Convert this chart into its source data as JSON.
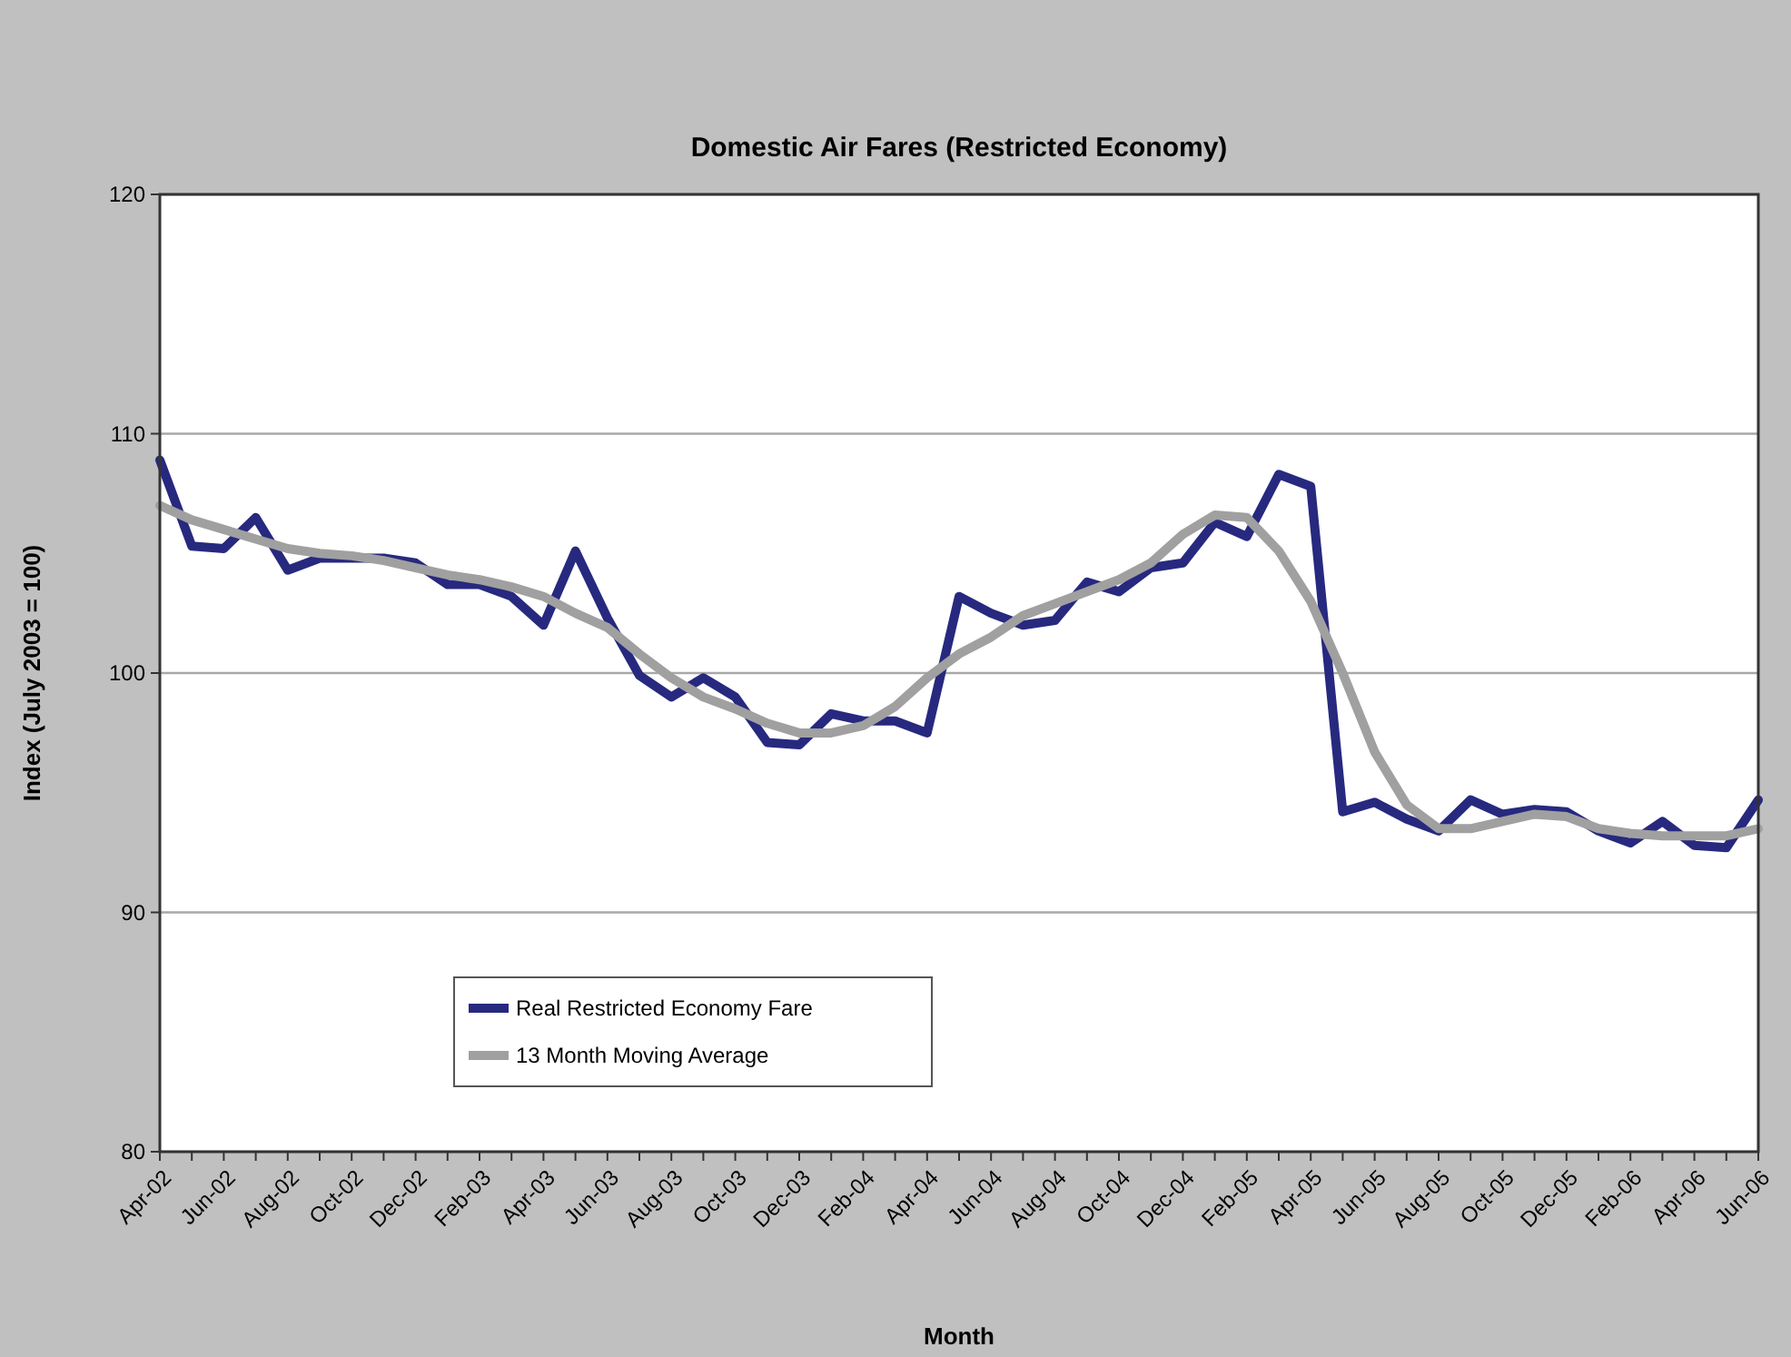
{
  "chart_data": {
    "type": "line",
    "title": "Domestic Air Fares (Restricted Economy)",
    "xlabel": "Month",
    "ylabel": "Index (July 2003 = 100)",
    "categories": [
      "Apr-02",
      null,
      "Jun-02",
      null,
      "Aug-02",
      null,
      "Oct-02",
      null,
      "Dec-02",
      null,
      "Feb-03",
      null,
      "Apr-03",
      null,
      "Jun-03",
      null,
      "Aug-03",
      null,
      "Oct-03",
      null,
      "Dec-03",
      null,
      "Feb-04",
      null,
      "Apr-04",
      null,
      "Jun-04",
      null,
      "Aug-04",
      null,
      "Oct-04",
      null,
      "Dec-04",
      null,
      "Feb-05",
      null,
      "Apr-05",
      null,
      "Jun-05",
      null,
      "Aug-05",
      null,
      "Oct-05",
      null,
      "Dec-05",
      null,
      "Feb-06",
      null,
      "Apr-06",
      null,
      "Jun-06"
    ],
    "series": [
      {
        "name": "Real Restricted Economy Fare",
        "color": "#27297f",
        "values": [
          108.9,
          105.3,
          105.2,
          106.5,
          104.3,
          104.8,
          104.8,
          104.8,
          104.6,
          103.7,
          103.7,
          103.2,
          102.0,
          105.1,
          102.3,
          99.9,
          99.0,
          99.8,
          99.0,
          97.1,
          97.0,
          98.3,
          98.0,
          98.0,
          97.5,
          103.2,
          102.5,
          102.0,
          102.2,
          103.8,
          103.4,
          104.4,
          104.6,
          106.3,
          105.7,
          108.3,
          107.8,
          94.2,
          94.6,
          93.9,
          93.4,
          94.7,
          94.1,
          94.3,
          94.2,
          93.4,
          92.9,
          93.8,
          92.8,
          92.7,
          94.7
        ]
      },
      {
        "name": "13 Month Moving Average",
        "color": "#a0a0a0",
        "values": [
          107.0,
          106.4,
          106.0,
          105.6,
          105.2,
          105.0,
          104.9,
          104.7,
          104.4,
          104.1,
          103.9,
          103.6,
          103.2,
          102.5,
          101.9,
          100.8,
          99.8,
          99.0,
          98.5,
          97.9,
          97.5,
          97.5,
          97.8,
          98.6,
          99.8,
          100.8,
          101.5,
          102.4,
          102.9,
          103.4,
          103.9,
          104.6,
          105.8,
          106.6,
          106.5,
          105.1,
          103.0,
          100.0,
          96.7,
          94.5,
          93.5,
          93.5,
          93.8,
          94.1,
          94.0,
          93.5,
          93.3,
          93.2,
          93.2,
          93.2,
          93.5
        ]
      }
    ],
    "ylim": [
      80,
      120
    ],
    "yticks": [
      80,
      90,
      100,
      110,
      120
    ],
    "grid": "y",
    "legend": "bottom left",
    "marker": "none",
    "line_style": "solid"
  }
}
